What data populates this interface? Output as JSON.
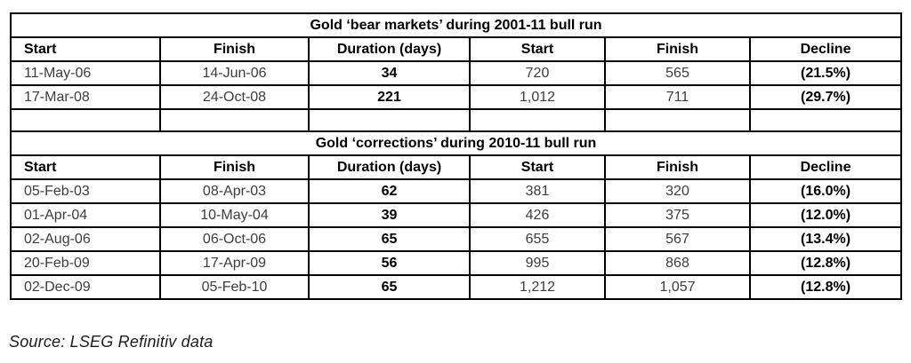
{
  "page": {
    "background": "#ffffff",
    "text_color": "#3d3d3d",
    "emphasis_color": "#000000",
    "border_color": "#000000"
  },
  "table": {
    "bold_value_columns": [
      2,
      5
    ],
    "sections": [
      {
        "title": "Gold ‘bear markets’ during 2001-11 bull run",
        "headers": [
          "Start",
          "Finish",
          "Duration (days)",
          "Start",
          "Finish",
          "Decline"
        ],
        "rows": [
          [
            "11-May-06",
            "14-Jun-06",
            "34",
            "720",
            "565",
            "(21.5%)"
          ],
          [
            "17-Mar-08",
            "24-Oct-08",
            "221",
            "1,012",
            "711",
            "(29.7%)"
          ]
        ],
        "trailing_empty_row": true
      },
      {
        "title": "Gold ‘corrections’ during 2010-11 bull run",
        "headers": [
          "Start",
          "Finish",
          "Duration (days)",
          "Start",
          "Finish",
          "Decline"
        ],
        "rows": [
          [
            "05-Feb-03",
            "08-Apr-03",
            "62",
            "381",
            "320",
            "(16.0%)"
          ],
          [
            "01-Apr-04",
            "10-May-04",
            "39",
            "426",
            "375",
            "(12.0%)"
          ],
          [
            "02-Aug-06",
            "06-Oct-06",
            "65",
            "655",
            "567",
            "(13.4%)"
          ],
          [
            "20-Feb-09",
            "17-Apr-09",
            "56",
            "995",
            "868",
            "(12.8%)"
          ],
          [
            "02-Dec-09",
            "05-Feb-10",
            "65",
            "1,212",
            "1,057",
            "(12.8%)"
          ]
        ],
        "trailing_empty_row": false
      }
    ]
  },
  "source_note": "Source: LSEG Refinitiv data"
}
